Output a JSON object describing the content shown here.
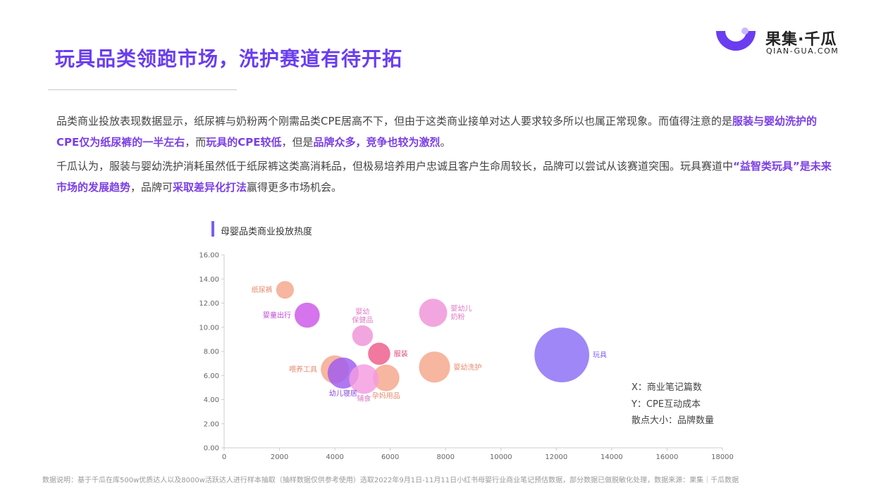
{
  "page": {
    "title": "玩具品类领跑市场，洗护赛道有待开拓",
    "logo": {
      "name": "果集·千瓜",
      "sub": "QIAN-GUA.COM"
    },
    "para1": {
      "t1": "品类商业投放表现数据显示，纸尿裤与奶粉两个刚需品类CPE居高不下，但由于这类商业接单对达人要求较多所以也属正常现象。而值得注意的是",
      "h1": "服装与婴幼洗护的CPE仅为纸尿裤的一半左右",
      "t2": "，而",
      "h2": "玩具的CPE较低",
      "t3": "，但是",
      "h3": "品牌众多，竞争也较为激烈",
      "t4": "。"
    },
    "para2": {
      "t1": "千瓜认为，服装与婴幼洗护消耗虽然低于纸尿裤这类高消耗品，但极易培养用户忠诚且客户生命周较长，品牌可以尝试从该赛道突围。玩具赛道中",
      "h1": "“益智类玩具”是未来市场的发展趋势",
      "t2": "，品牌可",
      "h2": "采取差异化打法",
      "t3": "赢得更多市场机会。"
    },
    "chart_title": "母婴品类商业投放热度",
    "notes": [
      "X：商业笔记篇数",
      "Y：CPE互动成本",
      "散点大小：品牌数量"
    ],
    "footnote": "数据说明：基于千瓜在库500w优质达人以及8000w活跃达人进行样本抽取（抽样数据仅供参考使用）选取2022年9月1日-11月11日小红书母婴行业商业笔记预估数据，部分数据已做脱敏化处理，数据来源：果集｜千瓜数据"
  },
  "colors": {
    "accent": "#6a3df0",
    "highlight": "#7b3fe4",
    "axis": "#cccccc",
    "tick": "#666666"
  },
  "chart_data": {
    "type": "scatter",
    "xlim": [
      0,
      18000
    ],
    "ylim": [
      0,
      16
    ],
    "x_ticks": [
      "0",
      "2000",
      "4000",
      "6000",
      "8000",
      "10000",
      "12000",
      "14000",
      "16000",
      "18000"
    ],
    "y_ticks": [
      "0.00",
      "2.00",
      "4.00",
      "6.00",
      "8.00",
      "10.00",
      "12.00",
      "14.00",
      "16.00"
    ],
    "grid": false,
    "points": [
      {
        "label": [
          "纸尿裤"
        ],
        "x": 2200,
        "y": 13.1,
        "size": 1.2,
        "color": "#f4a68a",
        "label_pos": "left",
        "label_color": "#e98a6e"
      },
      {
        "label": [
          "婴童出行"
        ],
        "x": 3000,
        "y": 11.0,
        "size": 1.7,
        "color": "#cc55e8",
        "label_pos": "left",
        "label_color": "#c04ad8"
      },
      {
        "label": [
          "婴幼",
          "保健品"
        ],
        "x": 5000,
        "y": 9.3,
        "size": 1.4,
        "color": "#ef92d8",
        "label_pos": "top",
        "label_color": "#e07ac6"
      },
      {
        "label": [
          "婴幼儿",
          "奶粉"
        ],
        "x": 7550,
        "y": 11.2,
        "size": 1.9,
        "color": "#ef92d8",
        "label_pos": "right",
        "label_color": "#e07ac6"
      },
      {
        "label": [
          "服装"
        ],
        "x": 5600,
        "y": 7.8,
        "size": 1.5,
        "color": "#ee5a8a",
        "label_pos": "right",
        "label_color": "#e04a7a"
      },
      {
        "label": [
          "玩具"
        ],
        "x": 12200,
        "y": 7.7,
        "size": 3.7,
        "color": "#8a6cf5",
        "label_pos": "right",
        "label_color": "#7b5cf5"
      },
      {
        "label": [
          "喂养工具"
        ],
        "x": 4000,
        "y": 6.5,
        "size": 1.9,
        "color": "#f4a68a",
        "label_pos": "left",
        "label_color": "#e98a6e"
      },
      {
        "label": [
          "幼儿寝居"
        ],
        "x": 4300,
        "y": 6.2,
        "size": 2.1,
        "color": "#9d5af0",
        "label_pos": "bottom",
        "label_color": "#8a4ae0"
      },
      {
        "label": [
          "婴幼洗护"
        ],
        "x": 7600,
        "y": 6.7,
        "size": 2.1,
        "color": "#f4a68a",
        "label_pos": "right",
        "label_color": "#e98a6e"
      },
      {
        "label": [
          "孕妈用品"
        ],
        "x": 5850,
        "y": 5.8,
        "size": 1.8,
        "color": "#f4a68a",
        "label_pos": "bottom",
        "label_color": "#e98a6e"
      },
      {
        "label": [
          "辅食"
        ],
        "x": 5050,
        "y": 5.7,
        "size": 2.0,
        "color": "#f49be0",
        "label_pos": "bottom",
        "label_color": "#e07ac6"
      }
    ]
  }
}
